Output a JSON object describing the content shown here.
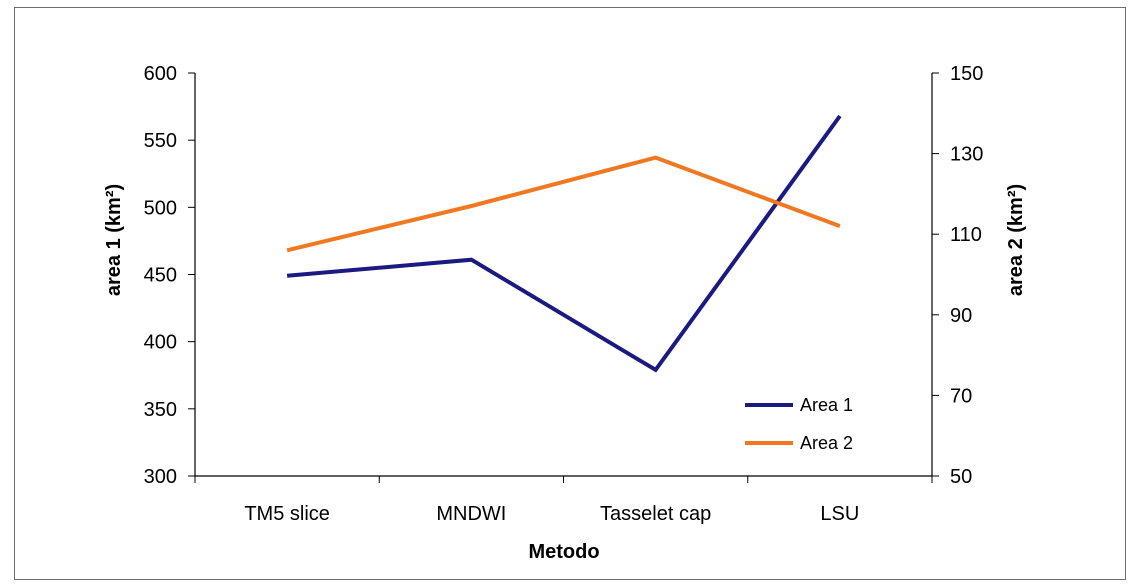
{
  "chart_data": {
    "type": "line",
    "categories": [
      "TM5 slice",
      "MNDWI",
      "Tasselet cap",
      "LSU"
    ],
    "xlabel": "Metodo",
    "ylabel_left": "area 1 (km²)",
    "ylabel_right": "area 2 (km²)",
    "ylim_left": [
      300,
      600
    ],
    "yticks_left": [
      300,
      350,
      400,
      450,
      500,
      550,
      600
    ],
    "ylim_right": [
      50,
      150
    ],
    "yticks_right": [
      50,
      70,
      90,
      110,
      130,
      150
    ],
    "grid": false,
    "legend_position": "bottom-right",
    "series": [
      {
        "name": "Area 1",
        "axis": "left",
        "color": "#1a1a80",
        "values": [
          449,
          461,
          379,
          568
        ]
      },
      {
        "name": "Area 2",
        "axis": "right",
        "color": "#f07820",
        "values": [
          106,
          117,
          129,
          112
        ]
      }
    ]
  }
}
